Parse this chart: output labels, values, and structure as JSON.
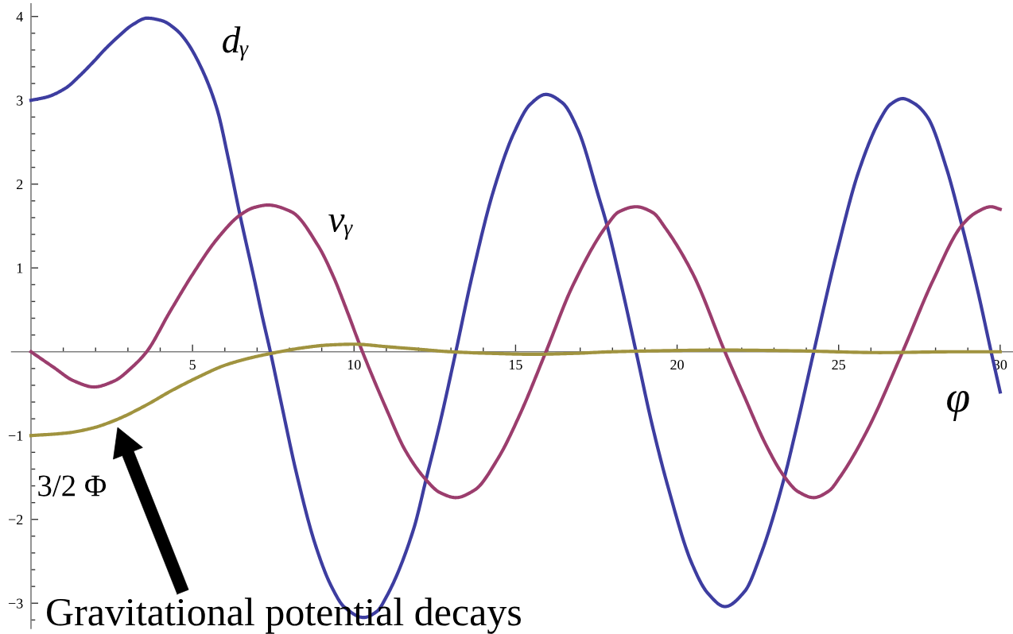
{
  "chart_data": {
    "type": "line",
    "xlabel": "φ",
    "xlim": [
      -0.6,
      30.4
    ],
    "ylim": [
      -3.3,
      4.15
    ],
    "xticks": [
      {
        "value": 1,
        "label": null
      },
      {
        "value": 2,
        "label": null
      },
      {
        "value": 3,
        "label": null
      },
      {
        "value": 4,
        "label": null
      },
      5,
      {
        "value": 6,
        "label": null
      },
      {
        "value": 7,
        "label": null
      },
      {
        "value": 8,
        "label": null
      },
      {
        "value": 9,
        "label": null
      },
      10,
      {
        "value": 11,
        "label": null
      },
      {
        "value": 12,
        "label": null
      },
      {
        "value": 13,
        "label": null
      },
      {
        "value": 14,
        "label": null
      },
      15,
      {
        "value": 16,
        "label": null
      },
      {
        "value": 17,
        "label": null
      },
      {
        "value": 18,
        "label": null
      },
      {
        "value": 19,
        "label": null
      },
      20,
      {
        "value": 21,
        "label": null
      },
      {
        "value": 22,
        "label": null
      },
      {
        "value": 23,
        "label": null
      },
      {
        "value": 24,
        "label": null
      },
      25,
      {
        "value": 26,
        "label": null
      },
      {
        "value": 27,
        "label": null
      },
      {
        "value": 28,
        "label": null
      },
      {
        "value": 29,
        "label": null
      },
      30
    ],
    "yticks": [
      {
        "value": -3.2,
        "label": null
      },
      -3,
      {
        "value": -2.8,
        "label": null
      },
      {
        "value": -2.6,
        "label": null
      },
      {
        "value": -2.4,
        "label": null
      },
      {
        "value": -2.2,
        "label": null
      },
      -2,
      {
        "value": -1.8,
        "label": null
      },
      {
        "value": -1.6,
        "label": null
      },
      {
        "value": -1.4,
        "label": null
      },
      {
        "value": -1.2,
        "label": null
      },
      -1,
      {
        "value": -0.8,
        "label": null
      },
      {
        "value": -0.6,
        "label": null
      },
      {
        "value": -0.4,
        "label": null
      },
      {
        "value": -0.2,
        "label": null
      },
      {
        "value": 0.2,
        "label": null
      },
      {
        "value": 0.4,
        "label": null
      },
      {
        "value": 0.6,
        "label": null
      },
      {
        "value": 0.8,
        "label": null
      },
      1,
      {
        "value": 1.2,
        "label": null
      },
      {
        "value": 1.4,
        "label": null
      },
      {
        "value": 1.6,
        "label": null
      },
      {
        "value": 1.8,
        "label": null
      },
      2,
      {
        "value": 2.2,
        "label": null
      },
      {
        "value": 2.4,
        "label": null
      },
      {
        "value": 2.6,
        "label": null
      },
      {
        "value": 2.8,
        "label": null
      },
      3,
      {
        "value": 3.2,
        "label": null
      },
      {
        "value": 3.4,
        "label": null
      },
      {
        "value": 3.6,
        "label": null
      },
      {
        "value": 3.8,
        "label": null
      },
      4
    ],
    "series": [
      {
        "name": "dᵧ",
        "color": "#3d3da0",
        "x": [
          0,
          0.5,
          1.09,
          1.5,
          1.91,
          2.32,
          2.73,
          3.14,
          3.59,
          4.05,
          4.5,
          4.78,
          5.28,
          5.77,
          6.1,
          6.47,
          6.92,
          7.16,
          7.41,
          7.74,
          8.23,
          8.8,
          9.3,
          9.71,
          10.3,
          10.7,
          11.02,
          11.84,
          12.25,
          12.66,
          13.15,
          13.64,
          14.3,
          14.96,
          15.45,
          15.94,
          16.45,
          16.93,
          17.58,
          17.83,
          18.24,
          18.73,
          19.22,
          19.71,
          20.45,
          20.95,
          21.48,
          22.09,
          22.59,
          23.32,
          23.65,
          24.23,
          24.96,
          25.62,
          26.28,
          26.6,
          26.98,
          27.35,
          27.75,
          28.33,
          28.82,
          29.31,
          29.72,
          30.0
        ],
        "values": [
          3.0,
          3.04,
          3.15,
          3.29,
          3.45,
          3.62,
          3.77,
          3.9,
          3.98,
          3.95,
          3.84,
          3.72,
          3.38,
          2.88,
          2.32,
          1.63,
          0.85,
          0.42,
          0.0,
          -0.6,
          -1.47,
          -2.3,
          -2.8,
          -3.05,
          -3.17,
          -3.1,
          -2.91,
          -2.12,
          -1.49,
          -0.85,
          0.0,
          0.88,
          1.9,
          2.62,
          2.95,
          3.07,
          2.97,
          2.65,
          1.84,
          1.51,
          0.85,
          0.0,
          -0.86,
          -1.6,
          -2.52,
          -2.88,
          -3.04,
          -2.86,
          -2.42,
          -1.5,
          -0.98,
          0.0,
          1.21,
          2.15,
          2.77,
          2.95,
          3.02,
          2.96,
          2.8,
          2.2,
          1.5,
          0.72,
          0.0,
          -0.48
        ]
      },
      {
        "name": "vᵧ",
        "color": "#9b3d6d",
        "x": [
          0,
          0.68,
          1.34,
          1.95,
          2.57,
          3.14,
          3.58,
          4.29,
          5.03,
          5.77,
          6.47,
          6.9,
          7.33,
          8.06,
          8.88,
          9.38,
          9.71,
          10.26,
          11.02,
          11.59,
          12.21,
          12.66,
          13.15,
          13.73,
          14.46,
          15.12,
          15.94,
          16.76,
          17.83,
          18.2,
          18.73,
          19.25,
          19.63,
          20.5,
          21.48,
          22.09,
          22.75,
          23.32,
          23.75,
          24.23,
          24.7,
          25.05,
          25.87,
          26.98,
          27.92,
          28.82,
          29.25,
          29.72,
          30.0
        ],
        "values": [
          0.0,
          -0.18,
          -0.35,
          -0.42,
          -0.35,
          -0.18,
          0.0,
          0.47,
          0.94,
          1.35,
          1.63,
          1.72,
          1.75,
          1.67,
          1.27,
          0.88,
          0.56,
          0.0,
          -0.7,
          -1.18,
          -1.52,
          -1.68,
          -1.74,
          -1.65,
          -1.27,
          -0.76,
          0.0,
          0.78,
          1.51,
          1.67,
          1.73,
          1.66,
          1.48,
          0.92,
          0.0,
          -0.54,
          -1.11,
          -1.49,
          -1.67,
          -1.74,
          -1.66,
          -1.49,
          -0.95,
          0.0,
          0.85,
          1.51,
          1.66,
          1.73,
          1.7
        ]
      },
      {
        "name": "3/2 Φ",
        "color": "#a0933f",
        "x": [
          0,
          1.09,
          1.91,
          2.65,
          3.55,
          4.37,
          5.19,
          6.01,
          6.83,
          7.7,
          8.47,
          9.2,
          10.0,
          11.02,
          12.0,
          12.99,
          14.3,
          15.53,
          16.76,
          17.99,
          19.22,
          21.36,
          23.82,
          26.28,
          28.7,
          30.0
        ],
        "values": [
          -1.0,
          -0.97,
          -0.91,
          -0.81,
          -0.64,
          -0.46,
          -0.3,
          -0.16,
          -0.07,
          0.0,
          0.05,
          0.08,
          0.09,
          0.06,
          0.03,
          0.0,
          -0.02,
          -0.03,
          -0.02,
          0.0,
          0.01,
          0.02,
          0.01,
          -0.01,
          0.0,
          0.0
        ]
      }
    ],
    "annotations": [
      "Gravitational potential decays"
    ]
  }
}
